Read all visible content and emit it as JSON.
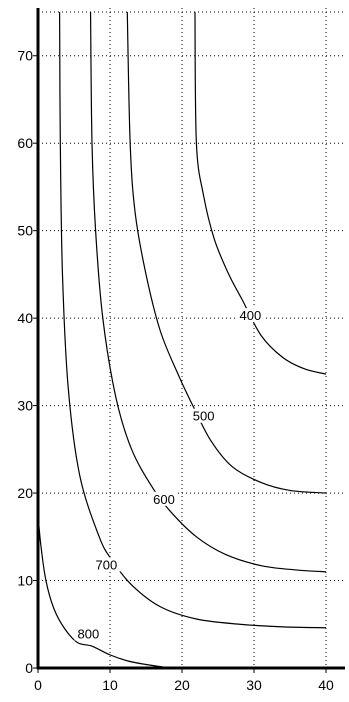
{
  "chart_data": {
    "type": "line",
    "title": "",
    "xlabel": "",
    "ylabel": "",
    "xlim": [
      0,
      40
    ],
    "ylim": [
      0,
      75
    ],
    "x_ticks": [
      0,
      10,
      20,
      30,
      40
    ],
    "y_ticks": [
      0,
      10,
      20,
      30,
      40,
      50,
      60,
      70
    ],
    "grid": true,
    "series": [
      {
        "name": "400",
        "points": [
          [
            21.8,
            75
          ],
          [
            22,
            60
          ],
          [
            23,
            54
          ],
          [
            24.5,
            49
          ],
          [
            26.5,
            45
          ],
          [
            28.3,
            42.2
          ],
          [
            31,
            38
          ],
          [
            34,
            35.5
          ],
          [
            37,
            34.2
          ],
          [
            40,
            33.6
          ]
        ],
        "label_at": [
          29.5,
          40
        ]
      },
      {
        "name": "500",
        "points": [
          [
            12.4,
            75
          ],
          [
            12.8,
            60
          ],
          [
            13.5,
            52
          ],
          [
            15,
            45
          ],
          [
            17,
            38.5
          ],
          [
            19.5,
            33.5
          ],
          [
            21.5,
            30
          ],
          [
            24,
            26
          ],
          [
            27,
            23
          ],
          [
            31,
            21.2
          ],
          [
            35,
            20.3
          ],
          [
            40,
            20
          ]
        ],
        "label_at": [
          23,
          28.5
        ]
      },
      {
        "name": "600",
        "points": [
          [
            7.3,
            75
          ],
          [
            7.5,
            60
          ],
          [
            8,
            50
          ],
          [
            9,
            40
          ],
          [
            10.8,
            31
          ],
          [
            13,
            25
          ],
          [
            16,
            20.5
          ],
          [
            18.5,
            17.8
          ],
          [
            22,
            15
          ],
          [
            26,
            13
          ],
          [
            31,
            11.7
          ],
          [
            36,
            11.2
          ],
          [
            40,
            11
          ]
        ],
        "label_at": [
          17.5,
          19
        ]
      },
      {
        "name": "700",
        "points": [
          [
            3,
            75
          ],
          [
            3.1,
            60
          ],
          [
            3.4,
            45
          ],
          [
            4.2,
            32
          ],
          [
            5.8,
            22
          ],
          [
            8.5,
            15
          ],
          [
            10.3,
            12.3
          ],
          [
            13,
            9.5
          ],
          [
            17,
            7
          ],
          [
            22,
            5.6
          ],
          [
            28,
            5
          ],
          [
            34,
            4.7
          ],
          [
            40,
            4.6
          ]
        ],
        "label_at": [
          9.5,
          11.5
        ]
      },
      {
        "name": "800",
        "points": [
          [
            0,
            17.5
          ],
          [
            0.4,
            14
          ],
          [
            1.1,
            10
          ],
          [
            2.2,
            6.8
          ],
          [
            3.7,
            4.5
          ],
          [
            5.5,
            2.9
          ],
          [
            7.5,
            2.5
          ],
          [
            10,
            1.5
          ],
          [
            12.5,
            0.8
          ],
          [
            15,
            0.4
          ],
          [
            17.5,
            0.1
          ]
        ],
        "label_at": [
          7,
          3.6
        ]
      }
    ]
  }
}
